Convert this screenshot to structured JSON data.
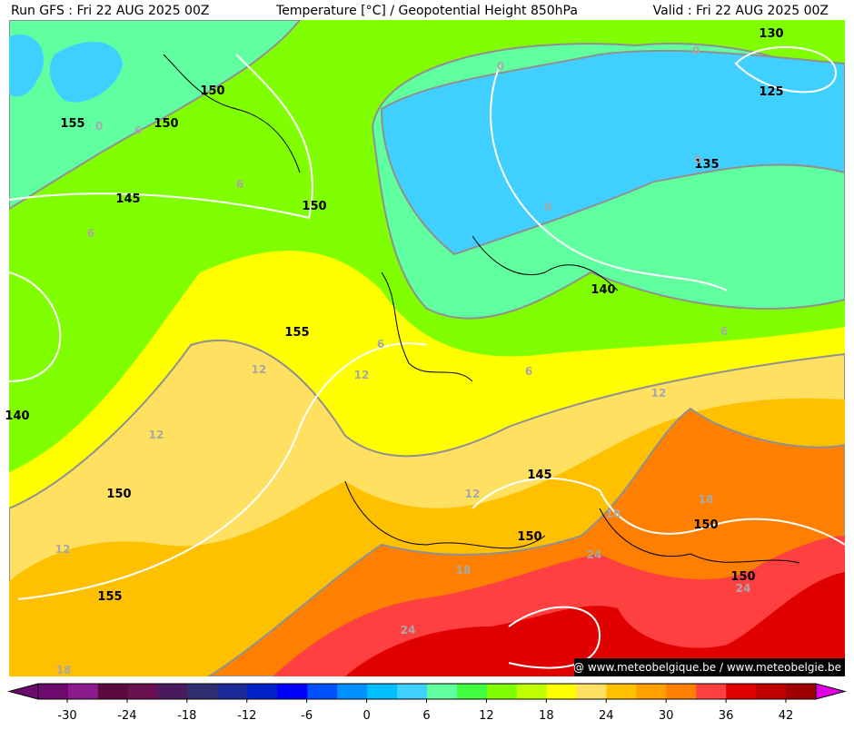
{
  "header": {
    "left": "Run GFS : Fri 22 AUG 2025 00Z",
    "center": "Temperature [°C] / Geopotential Height 850hPa",
    "right": "Valid : Fri 22 AUG 2025 00Z"
  },
  "height_labels": [
    130,
    125,
    135,
    150,
    155,
    150,
    145,
    150,
    140,
    155,
    140,
    150,
    145,
    150,
    150,
    150,
    155
  ],
  "temperature_labels": [
    0,
    0,
    0,
    6,
    6,
    6,
    0,
    0,
    6,
    6,
    12,
    12,
    6,
    12,
    12,
    12,
    18,
    18,
    12,
    24,
    18,
    24,
    24,
    18
  ],
  "watermark": "@ www.meteobelgique.be / www.meteobelgie.be",
  "colorbar": {
    "ticks": [
      -30,
      -24,
      -18,
      -12,
      -6,
      0,
      6,
      12,
      18,
      24,
      30,
      36,
      42
    ],
    "colors": [
      "#6e0a6e",
      "#8c1a8c",
      "#5a0a3c",
      "#6a1050",
      "#4a1a60",
      "#303070",
      "#1a2a9a",
      "#0020c8",
      "#0000ff",
      "#0050ff",
      "#0090ff",
      "#00c0ff",
      "#40d0ff",
      "#60ffa0",
      "#40ff40",
      "#80ff00",
      "#c0ff00",
      "#ffff00",
      "#ffe060",
      "#ffc000",
      "#ffa000",
      "#ff8000",
      "#ff4040",
      "#e00000",
      "#c00000",
      "#a00000"
    ]
  }
}
